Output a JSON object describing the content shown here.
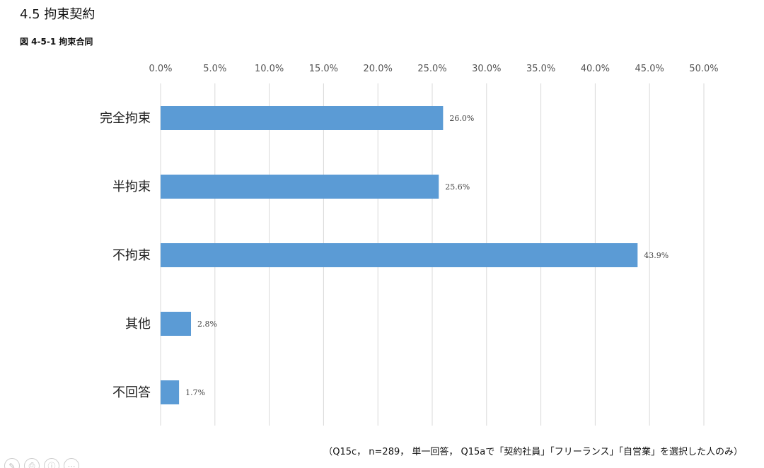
{
  "header": {
    "section_title": "4.5  拘束契約",
    "figure_caption": "図 4-5-1  拘束合同"
  },
  "chart_data": {
    "type": "bar",
    "orientation": "horizontal",
    "categories": [
      "完全拘束",
      "半拘束",
      "不拘束",
      "其他",
      "不回答"
    ],
    "values": [
      26.0,
      25.6,
      43.9,
      2.8,
      1.7
    ],
    "value_labels": [
      "26.0%",
      "25.6%",
      "43.9%",
      "2.8%",
      "1.7%"
    ],
    "x_ticks": [
      "0.0%",
      "5.0%",
      "10.0%",
      "15.0%",
      "20.0%",
      "25.0%",
      "30.0%",
      "35.0%",
      "40.0%",
      "45.0%",
      "50.0%"
    ],
    "xlim": [
      0,
      50
    ],
    "xaxis_position": "top",
    "grid": true,
    "legend": false,
    "bar_color": "#5b9bd5"
  },
  "note": "（Q15c， n=289， 単一回答， Q15aで「契約社員」「フリーランス」「自営業」を選択した人のみ）",
  "footer_icons": [
    "edit-icon",
    "print-icon",
    "info-icon",
    "more-icon"
  ]
}
